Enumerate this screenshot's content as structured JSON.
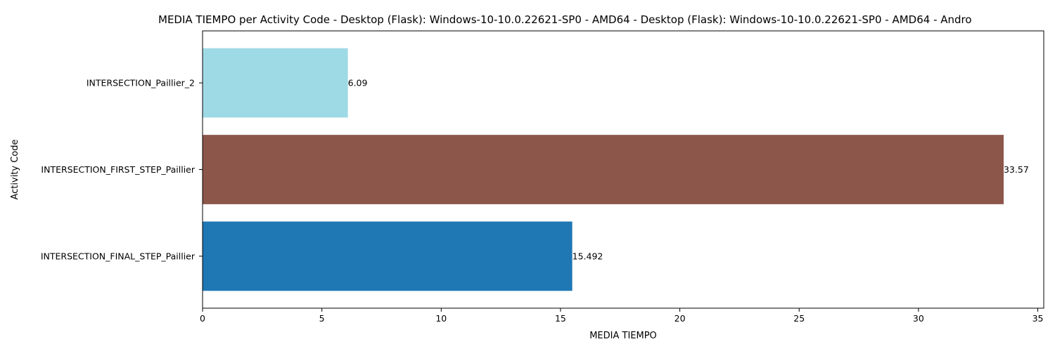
{
  "chart_data": {
    "type": "bar",
    "orientation": "horizontal",
    "title": "MEDIA TIEMPO per Activity Code - Desktop (Flask): Windows-10-10.0.22621-SP0 - AMD64 - Desktop (Flask): Windows-10-10.0.22621-SP0 - AMD64 - Andro",
    "xlabel": "MEDIA TIEMPO",
    "ylabel": "Activity Code",
    "categories": [
      "INTERSECTION_FINAL_STEP_Paillier",
      "INTERSECTION_FIRST_STEP_Paillier",
      "INTERSECTION_Paillier_2"
    ],
    "values": [
      15.492,
      33.57,
      6.09
    ],
    "data_labels": [
      "15.492",
      "33.57",
      "6.09"
    ],
    "colors": [
      "#1f77b4",
      "#8c564b",
      "#9edae5"
    ],
    "xlim": [
      0,
      35.25
    ],
    "xticks": [
      0,
      5,
      10,
      15,
      20,
      25,
      30,
      35
    ],
    "xtick_labels": [
      "0",
      "5",
      "10",
      "15",
      "20",
      "25",
      "30",
      "35"
    ],
    "grid": false,
    "legend": "none"
  }
}
